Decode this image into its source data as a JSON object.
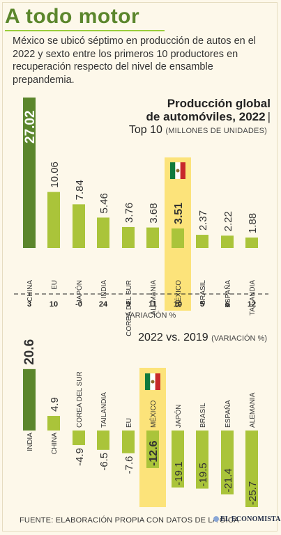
{
  "header": {
    "title": "A todo motor",
    "subtitle": "México se ubicó séptimo en producción de autos en el 2022 y sexto entre los primeros 10 productores en recuperación respecto del nivel de ensamble prepandemia."
  },
  "chart1": {
    "title_line1": "Producción global",
    "title_line2": "de automóviles, 2022",
    "title_sep": "|",
    "sub_main": "Top 10",
    "sub_unit": "(MILLONES DE UNIDADES)",
    "variation_label": "VARIACIÓN %"
  },
  "chart2": {
    "title_main": "2022 vs. 2019",
    "title_unit": "(VARIACIÓN %)"
  },
  "footer": {
    "source": "FUENTE: ELABORACIÓN PROPIA CON DATOS DE LA OICA",
    "brand": "EL ECONOMISTA",
    "brand_icon": "globe-icon"
  },
  "colors": {
    "dark_green": "#5b862c",
    "light_green": "#aac43a",
    "highlight": "#fce37a",
    "mexico_red": "#c8282a",
    "mexico_green": "#0f7a3c"
  },
  "chart_data": [
    {
      "type": "bar",
      "title": "Producción global de automóviles, 2022",
      "ylabel": "Millones de unidades",
      "categories": [
        "CHINA",
        "EU",
        "JAPÓN",
        "INDIA",
        "COREA DEL SUR",
        "ALEMANIA",
        "MÉXICO",
        "BRASIL",
        "ESPAÑA",
        "TAILANDIA"
      ],
      "values": [
        27.02,
        10.06,
        7.84,
        5.46,
        3.76,
        3.68,
        3.51,
        2.37,
        2.22,
        1.88
      ],
      "value_labels": [
        "27.02",
        "10.06",
        "7.84",
        "5.46",
        "3.76",
        "3.68",
        "3.51",
        "2.37",
        "2.22",
        "1.88"
      ],
      "variation_labels": [
        "3",
        "10",
        "-0",
        "24",
        "9",
        "11",
        "10",
        "5",
        "6",
        "12"
      ],
      "highlight": "MÉXICO"
    },
    {
      "type": "bar",
      "title": "2022 vs. 2019",
      "ylabel": "Variación %",
      "categories": [
        "INDIA",
        "CHINA",
        "COREA DEL SUR",
        "TAILANDIA",
        "EU",
        "MÉXICO",
        "JAPÓN",
        "BRASIL",
        "ESPAÑA",
        "ALEMANIA"
      ],
      "values": [
        20.6,
        4.9,
        -4.9,
        -6.5,
        -7.6,
        -12.6,
        -19.1,
        -19.5,
        -21.4,
        -25.7
      ],
      "value_labels": [
        "20.6",
        "4.9",
        "-4.9",
        "-6.5",
        "-7.6",
        "-12.6",
        "-19.1",
        "-19.5",
        "-21.4",
        "-25.7"
      ],
      "highlight": "MÉXICO"
    }
  ]
}
